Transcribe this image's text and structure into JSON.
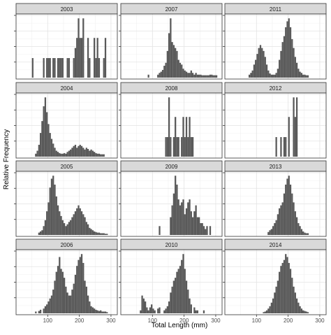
{
  "chart_data": {
    "type": "bar",
    "chart_kind": "faceted histogram",
    "xlabel": "Total Length (mm)",
    "ylabel": "Relative Frequency",
    "x_ticks": [
      100,
      200,
      300
    ],
    "xlim": [
      0,
      320
    ],
    "bin_width": 5,
    "y_ticks_shown_without_labels": true,
    "grid": true,
    "facet_layout": {
      "columns": 3,
      "rows": 4
    },
    "facets": [
      {
        "year": "2003",
        "bin_centers": [
          52.5,
          87.5,
          97.5,
          102.5,
          107.5,
          117.5,
          122.5,
          132.5,
          137.5,
          142.5,
          147.5,
          162.5,
          167.5,
          182.5,
          187.5,
          192.5,
          197.5,
          202.5,
          207.5,
          212.5,
          227.5,
          232.5,
          247.5,
          252.5,
          257.5,
          262.5,
          277.5,
          282.5
        ],
        "values": [
          0.33,
          0.33,
          0.33,
          0.33,
          0.33,
          0.33,
          0.33,
          0.33,
          0.33,
          0.33,
          0.33,
          0.33,
          0.33,
          0.33,
          0.5,
          0.67,
          1.0,
          0.67,
          0.67,
          1.0,
          0.67,
          0.33,
          0.67,
          0.33,
          0.67,
          0.33,
          0.33,
          0.67
        ]
      },
      {
        "year": "2007",
        "bin_centers": [
          87.5,
          117.5,
          122.5,
          127.5,
          132.5,
          137.5,
          142.5,
          147.5,
          152.5,
          157.5,
          162.5,
          167.5,
          172.5,
          177.5,
          182.5,
          187.5,
          192.5,
          197.5,
          202.5,
          207.5,
          212.5,
          217.5,
          222.5,
          227.5,
          232.5,
          237.5,
          242.5,
          247.5,
          252.5,
          257.5,
          262.5,
          267.5,
          272.5,
          277.5,
          282.5,
          287.5,
          292.5,
          297.5,
          302.5
        ],
        "values": [
          0.05,
          0.05,
          0.08,
          0.1,
          0.13,
          0.2,
          0.25,
          0.45,
          0.75,
          1.0,
          0.6,
          0.55,
          0.5,
          0.45,
          0.3,
          0.25,
          0.22,
          0.15,
          0.12,
          0.1,
          0.08,
          0.08,
          0.12,
          0.08,
          0.05,
          0.08,
          0.05,
          0.05,
          0.05,
          0.04,
          0.04,
          0.04,
          0.04,
          0.04,
          0.05,
          0.05,
          0.04,
          0.04,
          0.04
        ]
      },
      {
        "year": "2011",
        "bin_centers": [
          77.5,
          82.5,
          87.5,
          92.5,
          97.5,
          102.5,
          107.5,
          112.5,
          117.5,
          122.5,
          127.5,
          132.5,
          137.5,
          142.5,
          147.5,
          152.5,
          157.5,
          162.5,
          167.5,
          172.5,
          177.5,
          182.5,
          187.5,
          192.5,
          197.5,
          202.5,
          207.5,
          212.5,
          217.5,
          222.5,
          227.5,
          232.5,
          237.5,
          242.5,
          247.5,
          252.5,
          257.5,
          262.5
        ],
        "values": [
          0.05,
          0.08,
          0.12,
          0.22,
          0.3,
          0.4,
          0.5,
          0.55,
          0.5,
          0.45,
          0.35,
          0.22,
          0.12,
          0.07,
          0.05,
          0.05,
          0.05,
          0.08,
          0.15,
          0.3,
          0.45,
          0.6,
          0.7,
          0.85,
          0.95,
          1.0,
          0.85,
          0.65,
          0.5,
          0.35,
          0.25,
          0.15,
          0.1,
          0.08,
          0.05,
          0.05,
          0.04,
          0.04
        ]
      },
      {
        "year": "2004",
        "bin_centers": [
          62.5,
          67.5,
          72.5,
          77.5,
          82.5,
          87.5,
          92.5,
          97.5,
          102.5,
          107.5,
          112.5,
          117.5,
          122.5,
          127.5,
          132.5,
          137.5,
          142.5,
          147.5,
          152.5,
          157.5,
          162.5,
          167.5,
          172.5,
          177.5,
          182.5,
          187.5,
          192.5,
          197.5,
          202.5,
          207.5,
          212.5,
          217.5,
          222.5,
          227.5,
          232.5,
          237.5,
          242.5,
          247.5,
          252.5,
          257.5,
          262.5,
          267.5,
          272.5,
          277.5
        ],
        "values": [
          0.05,
          0.1,
          0.2,
          0.4,
          0.6,
          0.85,
          1.0,
          0.75,
          0.55,
          0.4,
          0.3,
          0.22,
          0.15,
          0.1,
          0.08,
          0.06,
          0.05,
          0.05,
          0.06,
          0.05,
          0.08,
          0.1,
          0.12,
          0.15,
          0.18,
          0.2,
          0.15,
          0.18,
          0.2,
          0.18,
          0.15,
          0.12,
          0.15,
          0.13,
          0.1,
          0.12,
          0.1,
          0.08,
          0.06,
          0.05,
          0.05,
          0.04,
          0.04,
          0.04
        ]
      },
      {
        "year": "2008",
        "bin_centers": [
          142.5,
          147.5,
          152.5,
          157.5,
          167.5,
          172.5,
          177.5,
          182.5,
          192.5,
          197.5,
          202.5,
          207.5,
          212.5,
          217.5,
          222.5,
          227.5
        ],
        "values": [
          0.33,
          0.33,
          1.0,
          0.33,
          0.33,
          0.67,
          0.33,
          0.33,
          0.33,
          0.67,
          0.33,
          0.67,
          0.33,
          0.67,
          0.33,
          0.33
        ]
      },
      {
        "year": "2012",
        "bin_centers": [
          162.5,
          177.5,
          187.5,
          192.5,
          202.5,
          217.5,
          222.5,
          227.5
        ],
        "values": [
          0.33,
          0.33,
          0.33,
          0.33,
          0.67,
          1.0,
          0.67,
          1.0
        ]
      },
      {
        "year": "2005",
        "bin_centers": [
          72.5,
          77.5,
          82.5,
          87.5,
          92.5,
          97.5,
          102.5,
          107.5,
          112.5,
          117.5,
          122.5,
          127.5,
          132.5,
          137.5,
          142.5,
          147.5,
          152.5,
          157.5,
          162.5,
          167.5,
          172.5,
          177.5,
          182.5,
          187.5,
          192.5,
          197.5,
          202.5,
          207.5,
          212.5,
          217.5,
          222.5,
          227.5,
          232.5,
          237.5,
          242.5,
          247.5,
          252.5,
          257.5,
          262.5,
          267.5,
          272.5,
          277.5,
          282.5,
          287.5
        ],
        "values": [
          0.04,
          0.06,
          0.08,
          0.15,
          0.25,
          0.4,
          0.55,
          0.8,
          0.95,
          1.0,
          0.85,
          0.65,
          0.5,
          0.4,
          0.32,
          0.25,
          0.2,
          0.15,
          0.18,
          0.22,
          0.25,
          0.3,
          0.35,
          0.4,
          0.45,
          0.5,
          0.45,
          0.4,
          0.35,
          0.3,
          0.22,
          0.18,
          0.12,
          0.1,
          0.08,
          0.06,
          0.05,
          0.04,
          0.04,
          0.03,
          0.03,
          0.03,
          0.02,
          0.02
        ]
      },
      {
        "year": "2009",
        "bin_centers": [
          122.5,
          157.5,
          162.5,
          167.5,
          172.5,
          177.5,
          182.5,
          187.5,
          192.5,
          197.5,
          202.5,
          207.5,
          212.5,
          217.5,
          222.5,
          227.5,
          232.5,
          237.5,
          242.5,
          247.5,
          252.5,
          257.5,
          262.5,
          267.5,
          272.5,
          282.5
        ],
        "values": [
          0.15,
          0.3,
          0.5,
          0.7,
          1.0,
          0.85,
          0.6,
          0.5,
          0.55,
          0.6,
          0.35,
          0.45,
          0.55,
          0.6,
          0.4,
          0.3,
          0.4,
          0.5,
          0.3,
          0.3,
          0.2,
          0.2,
          0.15,
          0.1,
          0.15,
          0.15
        ]
      },
      {
        "year": "2013",
        "bin_centers": [
          137.5,
          142.5,
          147.5,
          152.5,
          157.5,
          162.5,
          167.5,
          172.5,
          177.5,
          182.5,
          187.5,
          192.5,
          197.5,
          202.5,
          207.5,
          212.5,
          217.5,
          222.5,
          227.5,
          232.5,
          237.5,
          242.5,
          247.5,
          252.5,
          257.5,
          262.5
        ],
        "values": [
          0.05,
          0.08,
          0.1,
          0.15,
          0.2,
          0.25,
          0.35,
          0.45,
          0.5,
          0.55,
          0.7,
          0.85,
          0.95,
          1.0,
          0.85,
          0.7,
          0.55,
          0.4,
          0.3,
          0.2,
          0.15,
          0.1,
          0.06,
          0.04,
          0.03,
          0.03
        ]
      },
      {
        "year": "2006",
        "bin_centers": [
          62.5,
          72.5,
          77.5,
          87.5,
          92.5,
          97.5,
          102.5,
          107.5,
          112.5,
          117.5,
          122.5,
          127.5,
          132.5,
          137.5,
          142.5,
          147.5,
          152.5,
          157.5,
          162.5,
          167.5,
          172.5,
          177.5,
          182.5,
          187.5,
          192.5,
          197.5,
          202.5,
          207.5,
          212.5,
          217.5,
          222.5,
          227.5,
          232.5,
          237.5,
          242.5,
          247.5,
          252.5,
          257.5,
          262.5,
          267.5,
          272.5,
          277.5,
          282.5,
          287.5
        ],
        "values": [
          0.03,
          0.04,
          0.06,
          0.08,
          0.12,
          0.15,
          0.2,
          0.25,
          0.3,
          0.4,
          0.55,
          0.7,
          0.8,
          0.95,
          0.75,
          0.7,
          0.6,
          0.45,
          0.35,
          0.3,
          0.3,
          0.4,
          0.5,
          0.65,
          0.8,
          0.9,
          0.95,
          1.0,
          0.85,
          0.55,
          0.45,
          0.3,
          0.2,
          0.12,
          0.1,
          0.08,
          0.06,
          0.05,
          0.04,
          0.05,
          0.03,
          0.03,
          0.03,
          0.02
        ]
      },
      {
        "year": "2010",
        "bin_centers": [
          62.5,
          67.5,
          72.5,
          77.5,
          82.5,
          87.5,
          92.5,
          97.5,
          102.5,
          107.5,
          117.5,
          122.5,
          137.5,
          142.5,
          147.5,
          152.5,
          157.5,
          162.5,
          167.5,
          172.5,
          177.5,
          182.5,
          187.5,
          192.5,
          197.5,
          202.5,
          207.5,
          212.5,
          217.5,
          222.5,
          232.5,
          237.5,
          242.5,
          262.5
        ],
        "values": [
          0.05,
          0.3,
          0.25,
          0.2,
          0.1,
          0.05,
          0.1,
          0.15,
          0.08,
          0.05,
          0.08,
          0.1,
          0.05,
          0.08,
          0.12,
          0.2,
          0.35,
          0.45,
          0.55,
          0.6,
          0.7,
          0.75,
          0.8,
          0.9,
          1.0,
          0.75,
          0.55,
          0.4,
          0.25,
          0.15,
          0.1,
          0.05,
          0.05,
          0.05
        ]
      },
      {
        "year": "2014",
        "bin_centers": [
          122.5,
          127.5,
          132.5,
          137.5,
          142.5,
          147.5,
          152.5,
          157.5,
          162.5,
          167.5,
          172.5,
          177.5,
          182.5,
          187.5,
          192.5,
          197.5,
          202.5,
          207.5,
          212.5,
          217.5,
          222.5,
          227.5,
          232.5,
          237.5,
          242.5,
          247.5,
          252.5,
          257.5,
          262.5
        ],
        "values": [
          0.02,
          0.03,
          0.05,
          0.08,
          0.12,
          0.18,
          0.25,
          0.35,
          0.45,
          0.55,
          0.7,
          0.8,
          0.85,
          0.9,
          1.0,
          0.95,
          0.85,
          0.75,
          0.6,
          0.45,
          0.35,
          0.25,
          0.18,
          0.12,
          0.08,
          0.05,
          0.04,
          0.03,
          0.02
        ]
      }
    ]
  }
}
